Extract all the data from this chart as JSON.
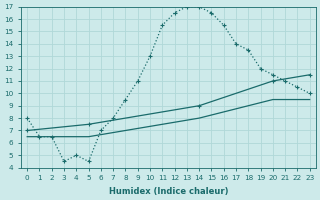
{
  "xlabel": "Humidex (Indice chaleur)",
  "background_color": "#cdeaea",
  "grid_color": "#b0d8d8",
  "line_color": "#1a6b6b",
  "xlim": [
    -0.5,
    23.5
  ],
  "ylim": [
    4,
    17
  ],
  "xticks": [
    0,
    1,
    2,
    3,
    4,
    5,
    6,
    7,
    8,
    9,
    10,
    11,
    12,
    13,
    14,
    15,
    16,
    17,
    18,
    19,
    20,
    21,
    22,
    23
  ],
  "yticks": [
    4,
    5,
    6,
    7,
    8,
    9,
    10,
    11,
    12,
    13,
    14,
    15,
    16,
    17
  ],
  "curve1_x": [
    0,
    1,
    2,
    3,
    4,
    5,
    6,
    7,
    8,
    9,
    10,
    11,
    12,
    13,
    14,
    15,
    16,
    17,
    18,
    19,
    20,
    21,
    22,
    23
  ],
  "curve1_y": [
    8,
    6.5,
    6.5,
    4.5,
    5,
    4.5,
    7,
    8,
    9.5,
    11,
    13,
    15.5,
    16.5,
    17,
    17,
    16.5,
    15.5,
    14,
    13.5,
    12,
    11.5,
    11,
    10.5,
    10
  ],
  "curve2_x": [
    0,
    5,
    14,
    20,
    23
  ],
  "curve2_y": [
    7,
    7.5,
    9,
    11,
    11.5
  ],
  "curve3_x": [
    0,
    5,
    14,
    20,
    23
  ],
  "curve3_y": [
    6.5,
    6.5,
    8,
    9.5,
    9.5
  ]
}
